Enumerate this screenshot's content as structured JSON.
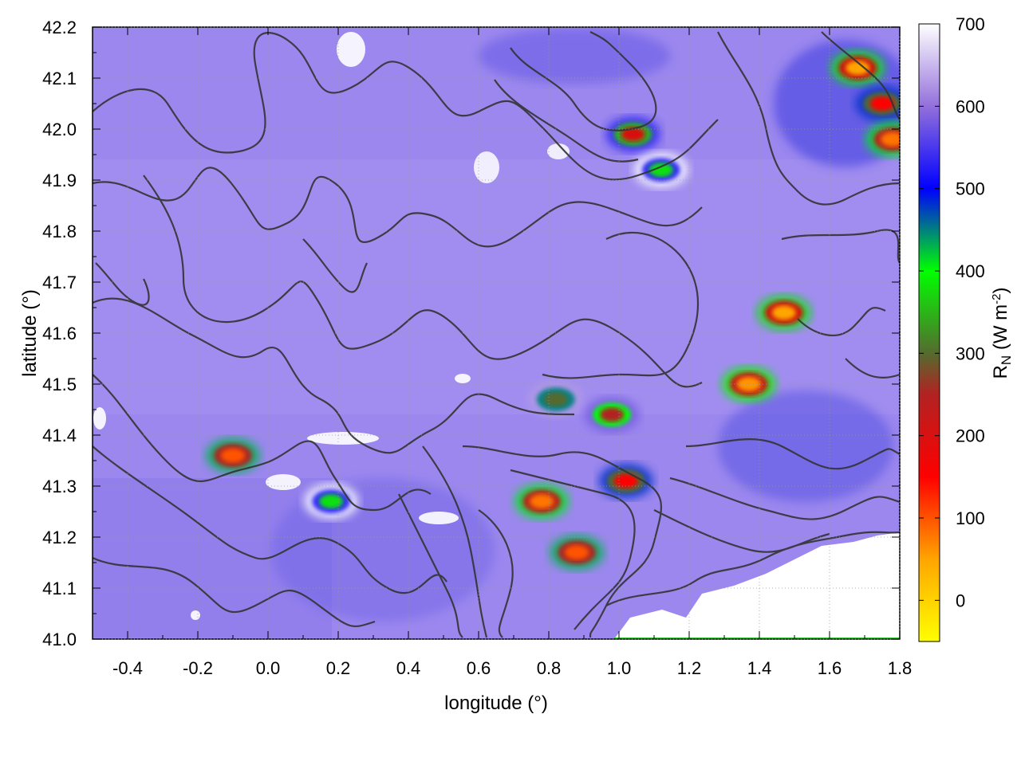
{
  "chart_data": {
    "type": "heatmap",
    "xlabel": "longitude (°)",
    "ylabel": "latitude (°)",
    "xlim": [
      -0.5,
      1.8
    ],
    "ylim": [
      41.0,
      42.2
    ],
    "x_ticks": [
      "-0.4",
      "-0.2",
      "0.0",
      "0.2",
      "0.4",
      "0.6",
      "0.8",
      "1.0",
      "1.2",
      "1.4",
      "1.6",
      "1.8"
    ],
    "x_tick_values": [
      -0.4,
      -0.2,
      0.0,
      0.2,
      0.4,
      0.6,
      0.8,
      1.0,
      1.2,
      1.4,
      1.6,
      1.8
    ],
    "y_ticks": [
      "41.0",
      "41.1",
      "41.2",
      "41.3",
      "41.4",
      "41.5",
      "41.6",
      "41.7",
      "41.8",
      "41.9",
      "42.0",
      "42.1",
      "42.2"
    ],
    "y_tick_values": [
      41.0,
      41.1,
      41.2,
      41.3,
      41.4,
      41.5,
      41.6,
      41.7,
      41.8,
      41.9,
      42.0,
      42.1,
      42.2
    ],
    "grid": true,
    "colorbar": {
      "label_main": "R",
      "label_sub": "N",
      "label_unit_open": " (W m",
      "label_exp": "-2",
      "label_unit_close": ")",
      "range": [
        -50,
        700
      ],
      "ticks": [
        "0",
        "100",
        "200",
        "300",
        "400",
        "500",
        "600",
        "700"
      ],
      "tick_values": [
        0,
        100,
        200,
        300,
        400,
        500,
        600,
        700
      ],
      "palette": [
        {
          "v": -50,
          "c": "#ffff00"
        },
        {
          "v": 50,
          "c": "#ffa500"
        },
        {
          "v": 150,
          "c": "#ff0000"
        },
        {
          "v": 250,
          "c": "#b22222"
        },
        {
          "v": 300,
          "c": "#556b2f"
        },
        {
          "v": 400,
          "c": "#00ff00"
        },
        {
          "v": 500,
          "c": "#0000ff"
        },
        {
          "v": 600,
          "c": "#9370db"
        },
        {
          "v": 700,
          "c": "#ffffff"
        }
      ]
    },
    "background_value": 610,
    "low_value_regions": [
      {
        "lon": 1.04,
        "lat": 41.99,
        "value": 200
      },
      {
        "lon": 1.12,
        "lat": 41.92,
        "value": 380
      },
      {
        "lon": 1.68,
        "lat": 42.12,
        "value": 50
      },
      {
        "lon": 1.75,
        "lat": 42.05,
        "value": 150
      },
      {
        "lon": 1.78,
        "lat": 41.98,
        "value": 80
      },
      {
        "lon": 0.82,
        "lat": 41.47,
        "value": 300
      },
      {
        "lon": 0.98,
        "lat": 41.44,
        "value": 250
      },
      {
        "lon": 0.78,
        "lat": 41.27,
        "value": 80
      },
      {
        "lon": 0.88,
        "lat": 41.17,
        "value": 100
      },
      {
        "lon": 1.02,
        "lat": 41.31,
        "value": 150
      },
      {
        "lon": 0.18,
        "lat": 41.27,
        "value": 380
      },
      {
        "lon": 1.47,
        "lat": 41.64,
        "value": 50
      },
      {
        "lon": 1.37,
        "lat": 41.5,
        "value": 60
      },
      {
        "lon": -0.1,
        "lat": 41.36,
        "value": 100
      }
    ],
    "missing_region": "sea area lower right (white)"
  }
}
